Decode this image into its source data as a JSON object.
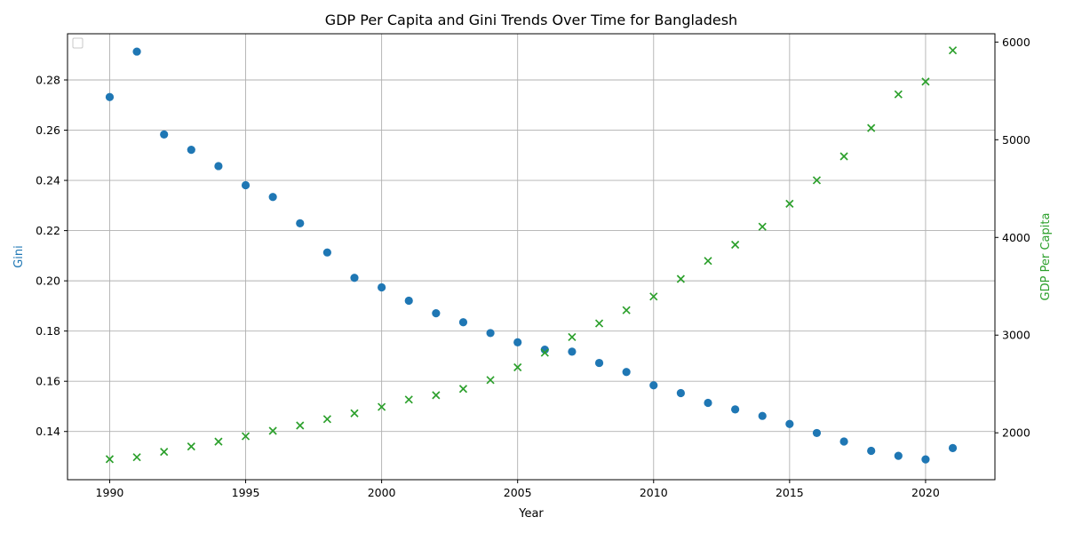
{
  "chart_data": {
    "type": "scatter",
    "title": "GDP Per Capita and Gini Trends Over Time for Bangladesh",
    "xlabel": "Year",
    "ylabel_left": "Gini",
    "ylabel_right": "GDP Per Capita",
    "x": [
      1990,
      1991,
      1992,
      1993,
      1994,
      1995,
      1996,
      1997,
      1998,
      1999,
      2000,
      2001,
      2002,
      2003,
      2004,
      2005,
      2006,
      2007,
      2008,
      2009,
      2010,
      2011,
      2012,
      2013,
      2014,
      2015,
      2016,
      2017,
      2018,
      2019,
      2020,
      2021
    ],
    "series": [
      {
        "axis": "left",
        "marker": "circle",
        "color": "#1f77b4",
        "values": [
          0.2732,
          0.2913,
          0.2583,
          0.2522,
          0.2457,
          0.2381,
          0.2334,
          0.2229,
          0.2113,
          0.2012,
          0.1974,
          0.1921,
          0.1871,
          0.1835,
          0.1792,
          0.1755,
          0.1726,
          0.1718,
          0.1673,
          0.1637,
          0.1584,
          0.1553,
          0.1514,
          0.1488,
          0.1462,
          0.143,
          0.1394,
          0.136,
          0.1323,
          0.1303,
          0.1289,
          0.1334
        ]
      },
      {
        "axis": "right",
        "marker": "x",
        "color": "#2ca02c",
        "values": [
          1730,
          1750,
          1805,
          1860,
          1910,
          1965,
          2020,
          2075,
          2140,
          2200,
          2265,
          2340,
          2385,
          2450,
          2540,
          2670,
          2820,
          2980,
          3120,
          3255,
          3395,
          3575,
          3760,
          3925,
          4110,
          4345,
          4585,
          4830,
          5120,
          5465,
          5595,
          5915
        ]
      }
    ],
    "xlim": [
      1988.45,
      2022.55
    ],
    "ylim_left": [
      0.1208,
      0.2984
    ],
    "ylim_right": [
      1520,
      6085
    ],
    "xticks": [
      1990,
      1995,
      2000,
      2005,
      2010,
      2015,
      2020
    ],
    "yticks_left": [
      "0.14",
      "0.16",
      "0.18",
      "0.20",
      "0.22",
      "0.24",
      "0.26",
      "0.28"
    ],
    "yticks_right": [
      "2000",
      "3000",
      "4000",
      "5000",
      "6000"
    ],
    "grid": true,
    "legend": "upper-left (empty)"
  }
}
